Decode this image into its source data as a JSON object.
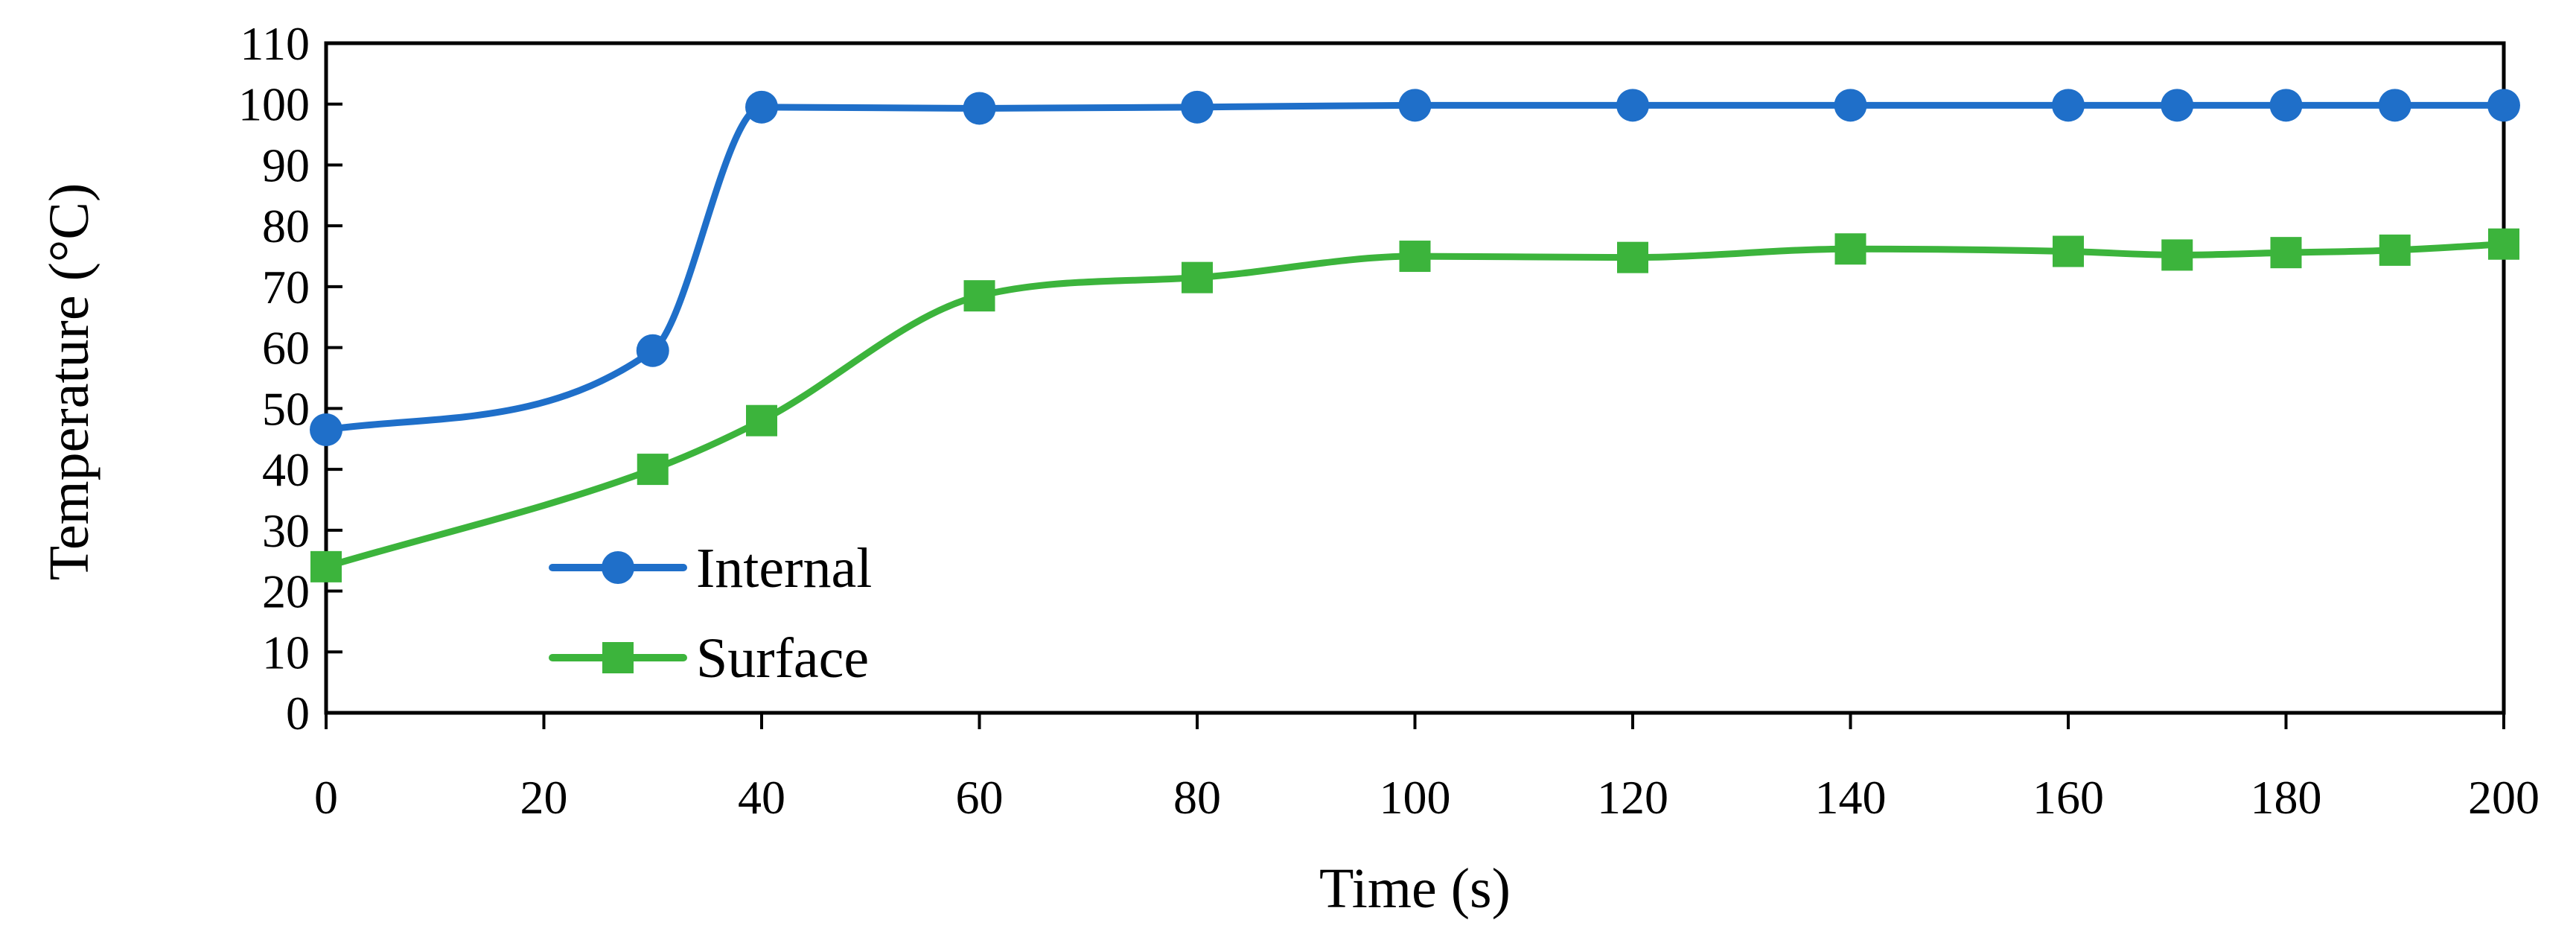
{
  "chart_data": {
    "type": "line",
    "title": "",
    "xlabel": "Time (s)",
    "ylabel": "Temperature (°C)",
    "xlim": [
      0,
      200
    ],
    "ylim": [
      0,
      110
    ],
    "xticks": [
      0,
      20,
      40,
      60,
      80,
      100,
      120,
      140,
      160,
      180,
      200
    ],
    "yticks": [
      0,
      10,
      20,
      30,
      40,
      50,
      60,
      70,
      80,
      90,
      100,
      110
    ],
    "grid": false,
    "legend_position": "lower-left",
    "series": [
      {
        "name": "Internal",
        "marker": "circle",
        "color": "#1f6fc9",
        "x": [
          0,
          30,
          40,
          60,
          80,
          100,
          120,
          140,
          160,
          170,
          180,
          190,
          200
        ],
        "values": [
          46.5,
          59.5,
          99.5,
          99.3,
          99.5,
          99.8,
          99.8,
          99.8,
          99.8,
          99.8,
          99.8,
          99.8,
          99.8
        ]
      },
      {
        "name": "Surface",
        "marker": "square",
        "color": "#3cb43c",
        "x": [
          0,
          30,
          40,
          60,
          80,
          100,
          120,
          140,
          160,
          170,
          180,
          190,
          200
        ],
        "values": [
          24,
          40,
          48,
          68.5,
          71.5,
          75,
          74.8,
          76.2,
          75.8,
          75.2,
          75.6,
          76,
          77
        ]
      }
    ]
  }
}
